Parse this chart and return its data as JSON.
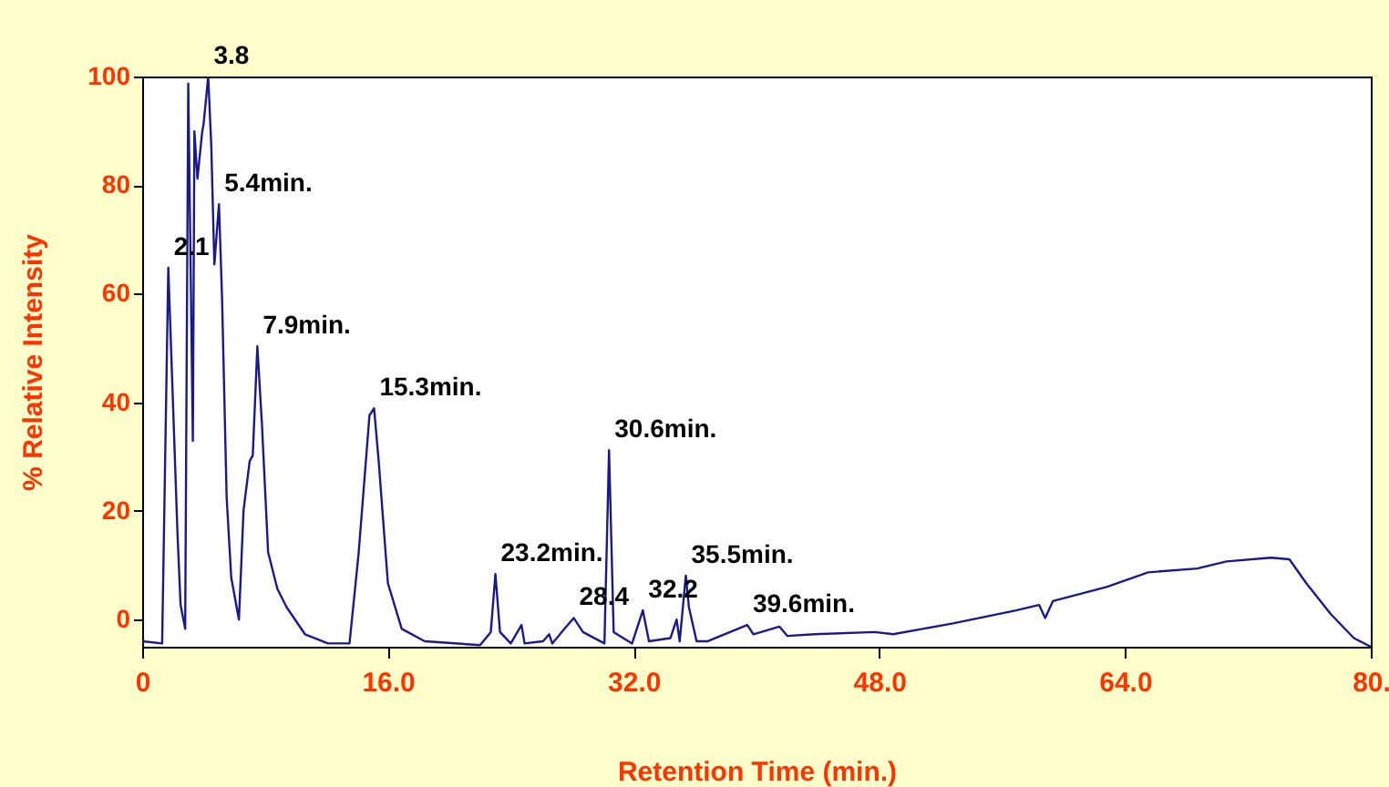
{
  "chart_data": {
    "type": "line",
    "xlabel": "Retention Time (min.)",
    "ylabel": "% Relative Intensity",
    "xlim": [
      0,
      80
    ],
    "ylim": [
      -5,
      100
    ],
    "xticks": [
      0,
      {
        "value": 16,
        "label": "16.0"
      },
      {
        "value": 32,
        "label": "32.0"
      },
      {
        "value": 48,
        "label": "48.0"
      },
      {
        "value": 64,
        "label": "64.0"
      },
      {
        "value": 80,
        "label": "80."
      }
    ],
    "yticks": [
      0,
      20,
      40,
      60,
      80,
      100
    ],
    "grid": false,
    "marker": "none",
    "line_style": "solid",
    "series": [
      {
        "color": "#1a1a8c",
        "x": [
          0,
          1.3,
          1.7,
          2.3,
          2.5,
          2.8,
          3.0,
          3.3,
          3.4,
          3.6,
          3.9,
          4.0,
          4.3,
          4.5,
          4.7,
          5.0,
          5.2,
          5.5,
          5.8,
          6.3,
          6.6,
          7.0,
          7.2,
          7.5,
          7.8,
          8.2,
          8.8,
          9.4,
          10.6,
          12.1,
          13.5,
          14.1,
          14.8,
          15.1,
          15.4,
          16.0,
          16.9,
          18.4,
          22.0,
          22.7,
          23.0,
          23.3,
          24.0,
          24.7,
          24.9,
          26.1,
          26.5,
          26.7,
          27.5,
          28.1,
          28.7,
          30.1,
          30.4,
          30.7,
          31.9,
          32.6,
          33.0,
          34.4,
          34.8,
          35.0,
          35.4,
          35.6,
          36.1,
          36.8,
          39.4,
          39.8,
          41.5,
          42.0,
          43.8,
          47.7,
          48.9,
          52.8,
          56.9,
          58.4,
          58.8,
          59.3,
          62.8,
          65.5,
          68.7,
          70.6,
          73.5,
          74.7,
          75.8,
          77.4,
          78.9,
          80.0
        ],
        "values": [
          -4.0,
          -4.4,
          64.8,
          15.8,
          2.7,
          -1.7,
          98.7,
          32.9,
          89.9,
          81.2,
          89.6,
          91.3,
          100,
          87.2,
          65.4,
          76.5,
          59.4,
          22.5,
          7.7,
          0,
          20.1,
          29.2,
          30.2,
          50.3,
          35.9,
          12.4,
          5.7,
          2.3,
          -2.7,
          -4.4,
          -4.4,
          12.4,
          37.6,
          38.9,
          29.2,
          6.7,
          -1.7,
          -4.0,
          -4.7,
          -2.3,
          8.4,
          -2.3,
          -4.4,
          -1.0,
          -4.4,
          -4.0,
          -2.7,
          -4.4,
          -1.7,
          0.3,
          -2.3,
          -4.4,
          31.2,
          -2.3,
          -4.4,
          1.7,
          -4.0,
          -3.4,
          0,
          -4.0,
          8.1,
          2.3,
          -4.0,
          -4.0,
          -1.0,
          -2.7,
          -1.3,
          -3.0,
          -2.7,
          -2.3,
          -2.7,
          -0.7,
          1.7,
          2.7,
          0.3,
          3.4,
          6.0,
          8.7,
          9.4,
          10.7,
          11.4,
          11.1,
          6.7,
          1.0,
          -3.4,
          -5.0
        ]
      }
    ],
    "annotations": [
      {
        "text": "2.1",
        "x": 1.7,
        "y": 64.8
      },
      {
        "text": "3.8",
        "x": 4.3,
        "y": 100
      },
      {
        "text": "5.4min.",
        "x": 5.0,
        "y": 76.5
      },
      {
        "text": "7.9min.",
        "x": 7.5,
        "y": 50.3
      },
      {
        "text": "15.3min.",
        "x": 15.1,
        "y": 38.9
      },
      {
        "text": "23.2min.",
        "x": 23.0,
        "y": 8.4
      },
      {
        "text": "28.4",
        "x": 28.1,
        "y": 0.3
      },
      {
        "text": "30.6min.",
        "x": 30.4,
        "y": 31.2
      },
      {
        "text": "32.2",
        "x": 32.6,
        "y": 1.7
      },
      {
        "text": "35.5min.",
        "x": 35.4,
        "y": 8.1
      },
      {
        "text": "39.6min.",
        "x": 39.4,
        "y": -1.0
      }
    ]
  }
}
